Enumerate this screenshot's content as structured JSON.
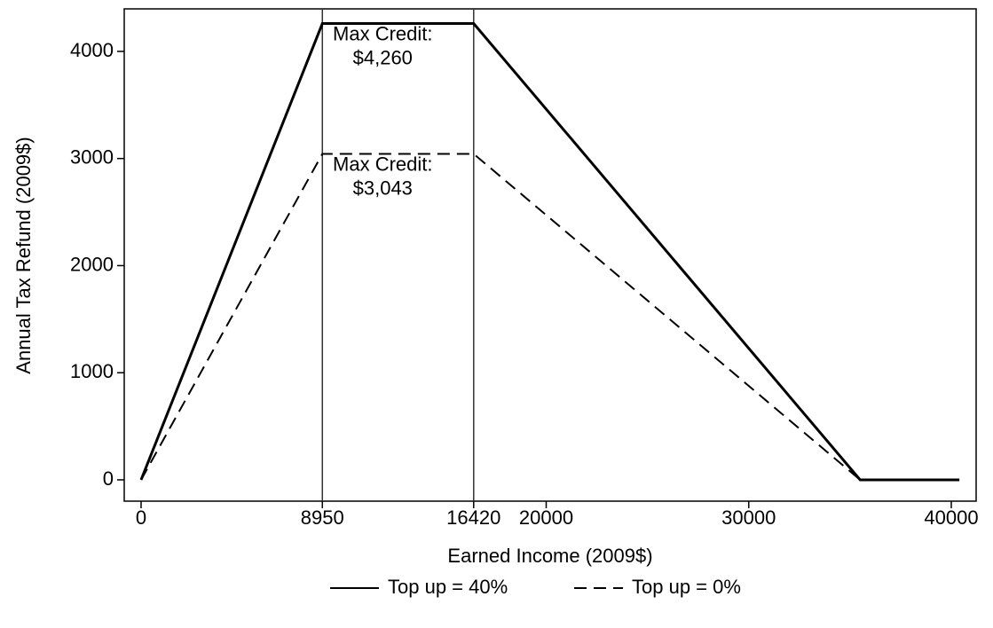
{
  "chart_data": {
    "type": "line",
    "x_label": "Earned Income (2009$)",
    "y_label": "Annual Tax Refund (2009$)",
    "x": [
      0,
      8950,
      16420,
      35500,
      40400
    ],
    "series": [
      {
        "name": "Top up = 40%",
        "color": "#000000",
        "line_style": "solid",
        "values": [
          0,
          4260,
          4260,
          0,
          0
        ]
      },
      {
        "name": "Top up = 0%",
        "color": "#000000",
        "line_style": "dashed",
        "values": [
          0,
          3043,
          3043,
          0,
          0
        ]
      }
    ],
    "vlines": [
      8950,
      16420
    ],
    "annotations": [
      {
        "lines": [
          "Max Credit:",
          "$4,260"
        ],
        "x": 8950,
        "y": 4260
      },
      {
        "lines": [
          "Max Credit:",
          "$3,043"
        ],
        "x": 8950,
        "y": 3043
      }
    ],
    "xlim": [
      -832,
      41227
    ],
    "ylim": [
      -199,
      4397
    ],
    "xticks": [
      0,
      8950,
      16420,
      20000,
      30000,
      40000
    ],
    "yticks": [
      0,
      1000,
      2000,
      3000,
      4000
    ],
    "legend": "bottom"
  }
}
